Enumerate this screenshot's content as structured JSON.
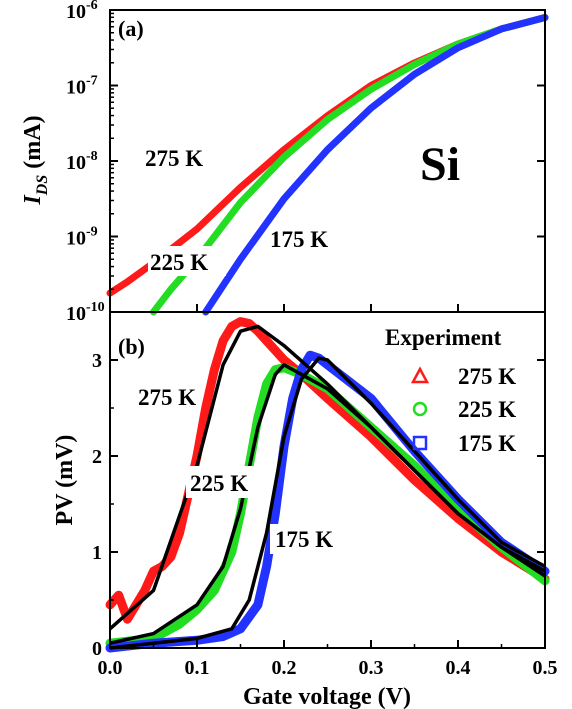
{
  "colors": {
    "red": "#ff1a1a",
    "green": "#22dd22",
    "blue": "#2233ff",
    "fit": "#000000",
    "axis": "#000000"
  },
  "chart_data": [
    {
      "panel_label": "(a)",
      "type": "scatter",
      "scale_y": "log",
      "ylabel_main": "I",
      "ylabel_sub": "DS",
      "ylabel_unit": "(mA)",
      "xlim": [
        0.0,
        0.5
      ],
      "ylim_exponent": [
        -10,
        -6
      ],
      "ytick_exponents": [
        -10,
        -9,
        -8,
        -7,
        -6
      ],
      "ytick_base": "10",
      "annotation": "Si",
      "series": [
        {
          "name": "275 K",
          "color": "red",
          "x": [
            0.0,
            0.02,
            0.05,
            0.1,
            0.15,
            0.2,
            0.25,
            0.3,
            0.35,
            0.4,
            0.45,
            0.5
          ],
          "log10_y": [
            -9.75,
            -9.6,
            -9.35,
            -8.9,
            -8.35,
            -7.85,
            -7.4,
            -7.0,
            -6.7,
            -6.45,
            -6.25,
            -6.1
          ]
        },
        {
          "name": "225 K",
          "color": "green",
          "x": [
            0.05,
            0.07,
            0.1,
            0.15,
            0.2,
            0.25,
            0.3,
            0.35,
            0.4,
            0.45,
            0.5
          ],
          "log10_y": [
            -10.0,
            -9.7,
            -9.3,
            -8.55,
            -7.95,
            -7.45,
            -7.05,
            -6.72,
            -6.45,
            -6.25,
            -6.1
          ]
        },
        {
          "name": "175 K",
          "color": "blue",
          "x": [
            0.11,
            0.13,
            0.15,
            0.2,
            0.25,
            0.3,
            0.35,
            0.4,
            0.45,
            0.5
          ],
          "log10_y": [
            -10.0,
            -9.65,
            -9.3,
            -8.5,
            -7.85,
            -7.3,
            -6.85,
            -6.5,
            -6.25,
            -6.1
          ]
        }
      ],
      "labels": [
        "275 K",
        "225 K",
        "175 K"
      ]
    },
    {
      "panel_label": "(b)",
      "type": "scatter",
      "ylabel": "PV (mV)",
      "xlabel": "Gate voltage (V)",
      "xlim": [
        0.0,
        0.5
      ],
      "ylim": [
        0,
        3.5
      ],
      "xticks": [
        "0.0",
        "0.1",
        "0.2",
        "0.3",
        "0.4",
        "0.5"
      ],
      "yticks": [
        "0",
        "1",
        "2",
        "3"
      ],
      "legend_title": "Experiment",
      "legend_position": "top-right",
      "series": [
        {
          "name": "275 K",
          "marker": "triangle",
          "color": "red",
          "x": [
            0.0,
            0.01,
            0.02,
            0.04,
            0.05,
            0.06,
            0.07,
            0.08,
            0.09,
            0.1,
            0.11,
            0.12,
            0.13,
            0.14,
            0.15,
            0.16,
            0.17,
            0.18,
            0.2,
            0.22,
            0.25,
            0.3,
            0.35,
            0.4,
            0.45,
            0.5
          ],
          "y": [
            0.45,
            0.55,
            0.3,
            0.6,
            0.8,
            0.85,
            0.95,
            1.2,
            1.6,
            2.0,
            2.5,
            2.9,
            3.2,
            3.35,
            3.4,
            3.38,
            3.3,
            3.2,
            3.0,
            2.85,
            2.6,
            2.2,
            1.75,
            1.35,
            1.0,
            0.72
          ]
        },
        {
          "name": "225 K",
          "marker": "circle",
          "color": "green",
          "x": [
            0.0,
            0.05,
            0.08,
            0.1,
            0.12,
            0.14,
            0.15,
            0.16,
            0.17,
            0.18,
            0.19,
            0.2,
            0.22,
            0.25,
            0.3,
            0.35,
            0.4,
            0.45,
            0.5
          ],
          "y": [
            0.05,
            0.1,
            0.25,
            0.4,
            0.6,
            1.0,
            1.4,
            1.9,
            2.4,
            2.75,
            2.9,
            2.92,
            2.85,
            2.7,
            2.3,
            1.9,
            1.45,
            1.05,
            0.7
          ]
        },
        {
          "name": "175 K",
          "marker": "square",
          "color": "blue",
          "x": [
            0.0,
            0.05,
            0.1,
            0.13,
            0.15,
            0.17,
            0.18,
            0.19,
            0.2,
            0.21,
            0.22,
            0.23,
            0.24,
            0.25,
            0.3,
            0.35,
            0.4,
            0.45,
            0.5
          ],
          "y": [
            0.0,
            0.05,
            0.08,
            0.12,
            0.2,
            0.45,
            0.85,
            1.4,
            2.1,
            2.6,
            2.9,
            3.05,
            3.02,
            2.95,
            2.6,
            2.05,
            1.55,
            1.1,
            0.8
          ]
        }
      ],
      "fits": [
        {
          "x": [
            0.0,
            0.05,
            0.1,
            0.13,
            0.15,
            0.17,
            0.2,
            0.25,
            0.3,
            0.35,
            0.4,
            0.45,
            0.5
          ],
          "y": [
            0.2,
            0.6,
            1.9,
            2.95,
            3.3,
            3.35,
            3.15,
            2.75,
            2.3,
            1.85,
            1.4,
            1.05,
            0.8
          ]
        },
        {
          "x": [
            0.0,
            0.05,
            0.1,
            0.13,
            0.15,
            0.17,
            0.19,
            0.2,
            0.25,
            0.3,
            0.35,
            0.4,
            0.45,
            0.5
          ],
          "y": [
            0.05,
            0.15,
            0.45,
            0.85,
            1.45,
            2.3,
            2.85,
            2.95,
            2.7,
            2.3,
            1.85,
            1.4,
            1.05,
            0.75
          ]
        },
        {
          "x": [
            0.0,
            0.05,
            0.1,
            0.14,
            0.16,
            0.18,
            0.2,
            0.22,
            0.24,
            0.25,
            0.3,
            0.35,
            0.4,
            0.45,
            0.5
          ],
          "y": [
            0.0,
            0.05,
            0.1,
            0.2,
            0.5,
            1.2,
            2.2,
            2.8,
            3.02,
            3.0,
            2.55,
            2.05,
            1.55,
            1.1,
            0.85
          ]
        }
      ],
      "labels": [
        "275 K",
        "225 K",
        "175 K"
      ]
    }
  ]
}
